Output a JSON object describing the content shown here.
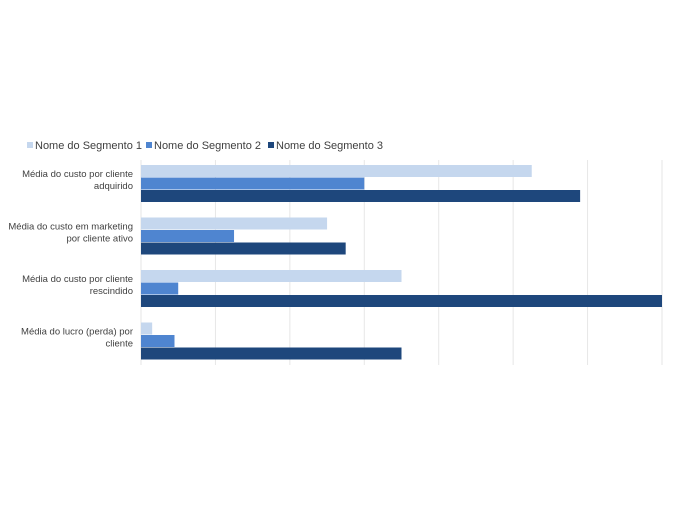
{
  "chart_data": {
    "type": "bar",
    "orientation": "horizontal",
    "title": "",
    "xlabel": "",
    "ylabel": "",
    "legend_position": "top-left",
    "grid": true,
    "categories": [
      [
        "Média do custo por cliente",
        "adquirido"
      ],
      [
        "Média do custo em marketing",
        "por cliente ativo"
      ],
      [
        "Média do custo por cliente",
        "rescindido"
      ],
      [
        "Média do lucro (perda) por",
        "cliente"
      ]
    ],
    "series": [
      {
        "name": "Nome do Segmento 1",
        "color": "#c5d7ee",
        "values": [
          5.25,
          2.5,
          3.5,
          0.15
        ]
      },
      {
        "name": "Nome do Segmento 2",
        "color": "#4f85d0",
        "values": [
          3.0,
          1.25,
          0.5,
          0.45
        ]
      },
      {
        "name": "Nome do Segmento 3",
        "color": "#1e477c",
        "values": [
          5.9,
          2.75,
          7.0,
          3.5
        ]
      }
    ],
    "xlim": [
      0,
      7
    ]
  }
}
